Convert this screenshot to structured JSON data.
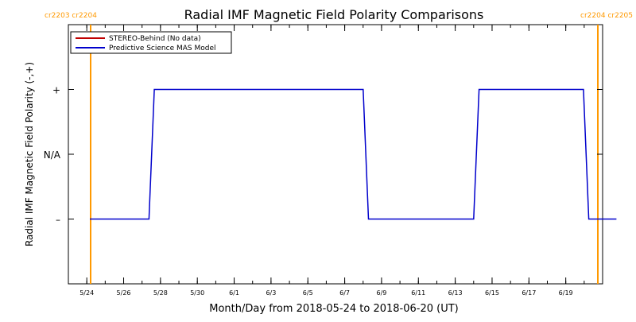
{
  "chart_data": {
    "type": "line",
    "title": "Radial IMF Magnetic Field Polarity Comparisons",
    "xlabel": "Month/Day from 2018-05-24 to 2018-06-20 (UT)",
    "ylabel": "Radial IMF Magnetic Field Polarity (-,+)",
    "xlim": [
      "2018-05-23",
      "2018-06-21"
    ],
    "ylim": [
      -2,
      2
    ],
    "y_ticks": [
      {
        "value": 1,
        "label": "+"
      },
      {
        "value": 0,
        "label": "N/A"
      },
      {
        "value": -1,
        "label": "–"
      }
    ],
    "x_ticks": [
      {
        "date": "2018-05-24",
        "label": "5/24"
      },
      {
        "date": "2018-05-26",
        "label": "5/26"
      },
      {
        "date": "2018-05-28",
        "label": "5/28"
      },
      {
        "date": "2018-05-30",
        "label": "5/30"
      },
      {
        "date": "2018-06-01",
        "label": "6/1"
      },
      {
        "date": "2018-06-03",
        "label": "6/3"
      },
      {
        "date": "2018-06-05",
        "label": "6/5"
      },
      {
        "date": "2018-06-07",
        "label": "6/7"
      },
      {
        "date": "2018-06-09",
        "label": "6/9"
      },
      {
        "date": "2018-06-11",
        "label": "6/11"
      },
      {
        "date": "2018-06-13",
        "label": "6/13"
      },
      {
        "date": "2018-06-15",
        "label": "6/15"
      },
      {
        "date": "2018-06-17",
        "label": "6/17"
      },
      {
        "date": "2018-06-19",
        "label": "6/19"
      }
    ],
    "legend": {
      "placement": "top-left",
      "entries": [
        {
          "name": "STEREO-Behind (No data)",
          "color": "#c00000"
        },
        {
          "name": "Predictive Science MAS Model",
          "color": "#0000cc"
        }
      ]
    },
    "series": [
      {
        "name": "Predictive Science MAS Model",
        "color": "#0000cc",
        "points": [
          {
            "x": "2018-05-24 04:00",
            "y": -1
          },
          {
            "x": "2018-05-27 09:00",
            "y": -1
          },
          {
            "x": "2018-05-27 16:00",
            "y": 1
          },
          {
            "x": "2018-06-08 00:00",
            "y": 1
          },
          {
            "x": "2018-06-08 07:00",
            "y": -1
          },
          {
            "x": "2018-06-14 00:00",
            "y": -1
          },
          {
            "x": "2018-06-14 07:00",
            "y": 1
          },
          {
            "x": "2018-06-19 23:00",
            "y": 1
          },
          {
            "x": "2018-06-20 06:00",
            "y": -1
          },
          {
            "x": "2018-06-21 18:00",
            "y": -1
          }
        ]
      }
    ],
    "rotation_markers": [
      {
        "date": "2018-05-24 05:00",
        "label": "cr2203 cr2204",
        "side": "left"
      },
      {
        "date": "2018-06-21 18:00",
        "label": "cr2204 cr2205",
        "side": "right"
      }
    ],
    "marker_color": "#ff9900",
    "grid": false
  }
}
